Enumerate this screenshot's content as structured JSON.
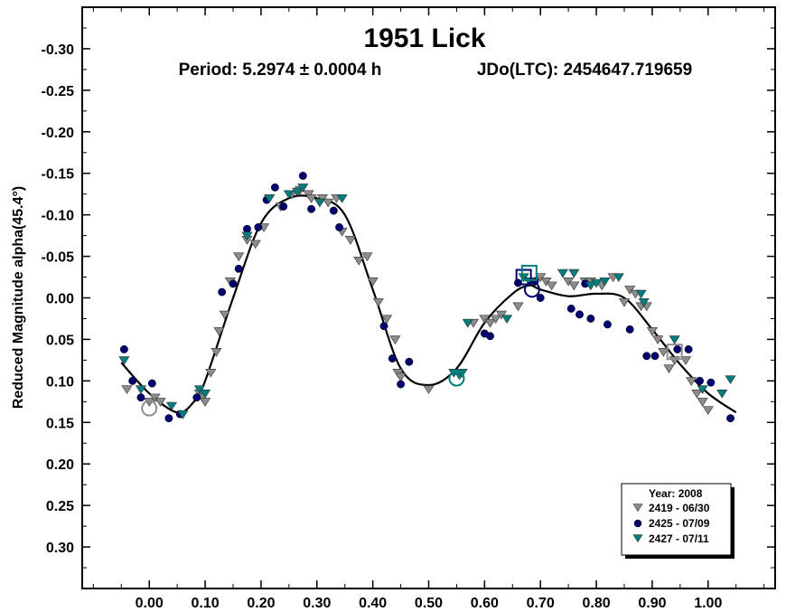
{
  "chart_data": {
    "type": "scatter",
    "title": "1951 Lick",
    "subtitle_period": "Period: 5.2974 ± 0.0004 h",
    "subtitle_epoch": "JDo(LTC): 2454647.719659",
    "ylabel": "Reduced Magnitude alpha(45.4°)",
    "xlabel": "",
    "xlim": [
      -0.12,
      1.12
    ],
    "ylim": [
      -0.35,
      0.35
    ],
    "y_inverted": true,
    "x_ticks": [
      0.0,
      0.1,
      0.2,
      0.3,
      0.4,
      0.5,
      0.6,
      0.7,
      0.8,
      0.9,
      1.0
    ],
    "x_tick_labels": [
      "0.00",
      "0.10",
      "0.20",
      "0.30",
      "0.40",
      "0.50",
      "0.60",
      "0.70",
      "0.80",
      "0.90",
      "1.00"
    ],
    "y_ticks": [
      -0.3,
      -0.25,
      -0.2,
      -0.15,
      -0.1,
      -0.05,
      0.0,
      0.05,
      0.1,
      0.15,
      0.2,
      0.25,
      0.3
    ],
    "y_tick_labels": [
      "-0.30",
      "-0.25",
      "-0.20",
      "-0.15",
      "-0.10",
      "-0.05",
      "0.00",
      "0.05",
      "0.10",
      "0.15",
      "0.20",
      "0.25",
      "0.30"
    ],
    "grid": false,
    "legend": {
      "title": "Year: 2008",
      "placement": "bottom-right",
      "entries": [
        "2419 - 06/30",
        "2425 - 07/09",
        "2427 - 07/11"
      ]
    },
    "series": [
      {
        "name": "2419 - 06/30",
        "marker": "triangle-down",
        "color": "#8c8c8c",
        "points": [
          [
            -0.04,
            0.11
          ],
          [
            0.0,
            0.125
          ],
          [
            0.01,
            0.12
          ],
          [
            0.02,
            0.125
          ],
          [
            0.06,
            0.14
          ],
          [
            0.09,
            0.115
          ],
          [
            0.095,
            0.12
          ],
          [
            0.1,
            0.125
          ],
          [
            0.11,
            0.09
          ],
          [
            0.12,
            0.065
          ],
          [
            0.125,
            0.04
          ],
          [
            0.135,
            0.02
          ],
          [
            0.145,
            -0.02
          ],
          [
            0.16,
            -0.05
          ],
          [
            0.175,
            -0.07
          ],
          [
            0.19,
            -0.065
          ],
          [
            0.205,
            -0.085
          ],
          [
            0.215,
            -0.12
          ],
          [
            0.235,
            -0.11
          ],
          [
            0.255,
            -0.125
          ],
          [
            0.27,
            -0.13
          ],
          [
            0.285,
            -0.125
          ],
          [
            0.29,
            -0.12
          ],
          [
            0.31,
            -0.12
          ],
          [
            0.32,
            -0.115
          ],
          [
            0.335,
            -0.12
          ],
          [
            0.345,
            -0.08
          ],
          [
            0.36,
            -0.07
          ],
          [
            0.375,
            -0.045
          ],
          [
            0.39,
            -0.05
          ],
          [
            0.4,
            -0.02
          ],
          [
            0.41,
            0.005
          ],
          [
            0.425,
            0.025
          ],
          [
            0.44,
            0.05
          ],
          [
            0.445,
            0.09
          ],
          [
            0.45,
            0.095
          ],
          [
            0.5,
            0.11
          ],
          [
            0.58,
            0.03
          ],
          [
            0.6,
            0.025
          ],
          [
            0.61,
            0.03
          ],
          [
            0.62,
            0.025
          ],
          [
            0.63,
            0.02
          ],
          [
            0.66,
            0.01
          ],
          [
            0.69,
            -0.02
          ],
          [
            0.7,
            -0.025
          ],
          [
            0.71,
            -0.02
          ],
          [
            0.72,
            -0.015
          ],
          [
            0.75,
            -0.02
          ],
          [
            0.76,
            -0.015
          ],
          [
            0.78,
            -0.02
          ],
          [
            0.79,
            -0.02
          ],
          [
            0.81,
            -0.015
          ],
          [
            0.83,
            -0.025
          ],
          [
            0.85,
            0.005
          ],
          [
            0.86,
            -0.01
          ],
          [
            0.87,
            -0.005
          ],
          [
            0.88,
            0.01
          ],
          [
            0.89,
            0.01
          ],
          [
            0.9,
            0.04
          ],
          [
            0.91,
            0.05
          ],
          [
            0.92,
            0.065
          ],
          [
            0.93,
            0.085
          ],
          [
            0.94,
            0.075
          ],
          [
            0.96,
            0.075
          ],
          [
            0.97,
            0.1
          ],
          [
            0.98,
            0.115
          ],
          [
            0.99,
            0.125
          ],
          [
            1.0,
            0.135
          ]
        ]
      },
      {
        "name": "2425 - 07/09",
        "marker": "circle",
        "color": "#00006e",
        "points": [
          [
            -0.045,
            0.062
          ],
          [
            -0.03,
            0.1
          ],
          [
            -0.015,
            0.12
          ],
          [
            0.005,
            0.103
          ],
          [
            0.035,
            0.145
          ],
          [
            0.055,
            0.14
          ],
          [
            0.085,
            0.12
          ],
          [
            0.13,
            -0.007
          ],
          [
            0.15,
            -0.017
          ],
          [
            0.16,
            -0.035
          ],
          [
            0.175,
            -0.083
          ],
          [
            0.195,
            -0.085
          ],
          [
            0.21,
            -0.118
          ],
          [
            0.225,
            -0.133
          ],
          [
            0.24,
            -0.11
          ],
          [
            0.275,
            -0.147
          ],
          [
            0.29,
            -0.107
          ],
          [
            0.33,
            -0.105
          ],
          [
            0.34,
            -0.085
          ],
          [
            0.42,
            0.034
          ],
          [
            0.435,
            0.073
          ],
          [
            0.45,
            0.104
          ],
          [
            0.465,
            0.077
          ],
          [
            0.6,
            0.043
          ],
          [
            0.61,
            0.046
          ],
          [
            0.66,
            -0.018
          ],
          [
            0.69,
            -0.02
          ],
          [
            0.7,
            0.0
          ],
          [
            0.755,
            0.013
          ],
          [
            0.77,
            0.02
          ],
          [
            0.78,
            -0.017
          ],
          [
            0.79,
            0.025
          ],
          [
            0.82,
            0.032
          ],
          [
            0.86,
            0.038
          ],
          [
            0.89,
            0.07
          ],
          [
            0.905,
            0.07
          ],
          [
            0.945,
            0.062
          ],
          [
            0.965,
            0.062
          ],
          [
            0.985,
            0.1
          ],
          [
            1.005,
            0.102
          ],
          [
            1.04,
            0.145
          ]
        ]
      },
      {
        "name": "2427 - 07/11",
        "marker": "triangle-down",
        "color": "#007d7d",
        "points": [
          [
            -0.045,
            0.075
          ],
          [
            -0.015,
            0.11
          ],
          [
            0.04,
            0.13
          ],
          [
            0.06,
            0.14
          ],
          [
            0.09,
            0.11
          ],
          [
            0.1,
            0.115
          ],
          [
            0.175,
            -0.075
          ],
          [
            0.215,
            -0.12
          ],
          [
            0.25,
            -0.125
          ],
          [
            0.265,
            -0.128
          ],
          [
            0.275,
            -0.133
          ],
          [
            0.305,
            -0.115
          ],
          [
            0.345,
            -0.12
          ],
          [
            0.545,
            0.09
          ],
          [
            0.555,
            0.093
          ],
          [
            0.56,
            0.09
          ],
          [
            0.57,
            0.03
          ],
          [
            0.64,
            0.025
          ],
          [
            0.67,
            -0.025
          ],
          [
            0.68,
            -0.02
          ],
          [
            0.74,
            -0.03
          ],
          [
            0.76,
            -0.03
          ],
          [
            0.79,
            -0.015
          ],
          [
            0.8,
            -0.018
          ],
          [
            0.815,
            -0.02
          ],
          [
            0.84,
            -0.025
          ],
          [
            0.88,
            -0.005
          ],
          [
            0.885,
            0.005
          ],
          [
            0.94,
            0.05
          ],
          [
            0.99,
            0.11
          ],
          [
            1.025,
            0.115
          ],
          [
            1.04,
            0.098
          ]
        ]
      }
    ],
    "fit_curve": {
      "color": "#000000",
      "points": [
        [
          -0.05,
          0.078
        ],
        [
          0.0,
          0.115
        ],
        [
          0.05,
          0.138
        ],
        [
          0.08,
          0.125
        ],
        [
          0.1,
          0.1
        ],
        [
          0.15,
          0.0
        ],
        [
          0.2,
          -0.09
        ],
        [
          0.25,
          -0.12
        ],
        [
          0.3,
          -0.12
        ],
        [
          0.35,
          -0.1
        ],
        [
          0.4,
          -0.01
        ],
        [
          0.45,
          0.085
        ],
        [
          0.5,
          0.105
        ],
        [
          0.55,
          0.085
        ],
        [
          0.6,
          0.03
        ],
        [
          0.65,
          -0.005
        ],
        [
          0.68,
          -0.015
        ],
        [
          0.7,
          -0.01
        ],
        [
          0.75,
          -0.002
        ],
        [
          0.8,
          -0.005
        ],
        [
          0.85,
          0.0
        ],
        [
          0.9,
          0.038
        ],
        [
          0.95,
          0.08
        ],
        [
          1.0,
          0.115
        ],
        [
          1.05,
          0.138
        ]
      ]
    },
    "highlighted_markers": [
      {
        "shape": "circle",
        "color": "#8c8c8c",
        "x": 0.0,
        "y": 0.133
      },
      {
        "shape": "circle",
        "color": "#007d7d",
        "x": 0.55,
        "y": 0.097
      },
      {
        "shape": "square",
        "color": "#00006e",
        "x": 0.67,
        "y": -0.025
      },
      {
        "shape": "square",
        "color": "#007d7d",
        "x": 0.68,
        "y": -0.03
      },
      {
        "shape": "circle",
        "color": "#00006e",
        "x": 0.685,
        "y": -0.01
      },
      {
        "shape": "square",
        "color": "#8c8c8c",
        "x": 0.94,
        "y": 0.065
      }
    ]
  },
  "icons": {
    "marker_2419": "triangle-down",
    "marker_2425": "circle",
    "marker_2427": "triangle-down"
  }
}
